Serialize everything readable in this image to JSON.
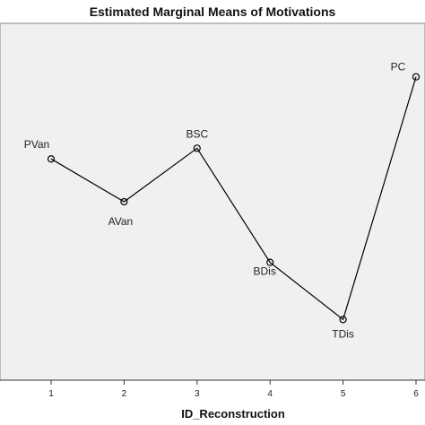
{
  "chart_data": {
    "type": "line",
    "title": "Estimated Marginal Means of Motivations",
    "xlabel": "ID_Reconstruction",
    "ylabel": "",
    "x": [
      1,
      2,
      3,
      4,
      5,
      6
    ],
    "xticks": [
      "1",
      "2",
      "3",
      "4",
      "5",
      "6"
    ],
    "xlim": [
      0.5,
      6.5
    ],
    "ylim": [
      0,
      100
    ],
    "grid": false,
    "background_color": "#f0f0f0",
    "line_color": "#000000",
    "series": [
      {
        "values": [
          62,
          50,
          65,
          33,
          17,
          85
        ],
        "point_labels": [
          "PVan",
          "AVan",
          "BSC",
          "BDis",
          "TDis",
          "PC"
        ]
      }
    ]
  }
}
